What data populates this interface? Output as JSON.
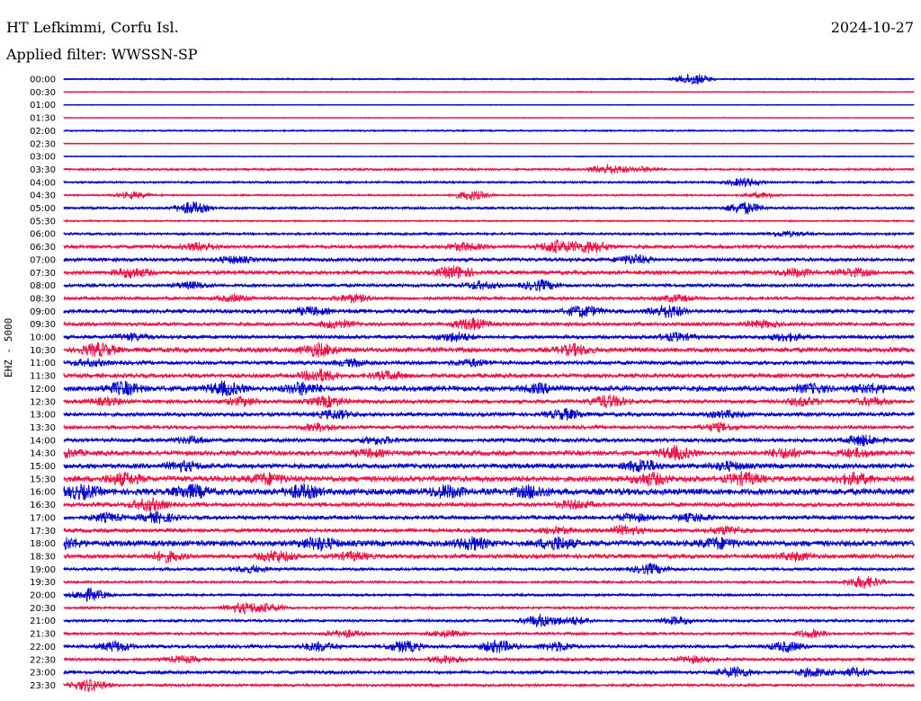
{
  "header": {
    "station": "HT Lefkimmi, Corfu Isl.",
    "date": "2024-10-27",
    "filter": "Applied filter: WWSSN-SP",
    "channel": "EHZ - 5000"
  },
  "colors": {
    "even_trace": "#0000cc",
    "odd_trace": "#ee1144",
    "text": "#000000"
  },
  "chart_data": {
    "type": "line",
    "title": "HT Lefkimmi, Corfu Isl.",
    "subtitle": "Applied filter: WWSSN-SP",
    "ylabel": "EHZ - 5000",
    "xlabel": "",
    "grid": false,
    "legend": "none",
    "tick_labels": [
      "00:00",
      "00:30",
      "01:00",
      "01:30",
      "02:00",
      "02:30",
      "03:00",
      "03:30",
      "04:00",
      "04:30",
      "05:00",
      "05:30",
      "06:00",
      "06:30",
      "07:00",
      "07:30",
      "08:00",
      "08:30",
      "09:00",
      "09:30",
      "10:00",
      "10:30",
      "11:00",
      "11:30",
      "12:00",
      "12:30",
      "13:00",
      "13:30",
      "14:00",
      "14:30",
      "15:00",
      "15:30",
      "16:00",
      "16:30",
      "17:00",
      "17:30",
      "18:00",
      "18:30",
      "19:00",
      "19:30",
      "20:00",
      "20:30",
      "21:00",
      "21:30",
      "22:00",
      "22:30",
      "23:00",
      "23:30"
    ],
    "activity_level": [
      0.15,
      0.05,
      0.02,
      0.02,
      0.15,
      0.05,
      0.05,
      0.25,
      0.25,
      0.2,
      0.3,
      0.15,
      0.3,
      0.5,
      0.5,
      0.55,
      0.45,
      0.45,
      0.55,
      0.5,
      0.5,
      0.7,
      0.55,
      0.6,
      0.8,
      0.55,
      0.55,
      0.5,
      0.55,
      0.7,
      0.7,
      0.85,
      0.95,
      0.6,
      0.55,
      0.55,
      0.85,
      0.6,
      0.4,
      0.3,
      0.3,
      0.3,
      0.35,
      0.35,
      0.45,
      0.4,
      0.45,
      0.35
    ],
    "bursts": [
      [
        [
          0.74,
          1.0
        ]
      ],
      [],
      [],
      [],
      [],
      [],
      [],
      [
        [
          0.64,
          0.8
        ],
        [
          0.68,
          0.4
        ]
      ],
      [
        [
          0.8,
          0.7
        ]
      ],
      [
        [
          0.08,
          0.5
        ],
        [
          0.48,
          0.8
        ],
        [
          0.82,
          0.4
        ]
      ],
      [
        [
          0.15,
          1.0
        ],
        [
          0.8,
          1.0
        ]
      ],
      [],
      [
        [
          0.85,
          0.4
        ]
      ],
      [
        [
          0.16,
          0.6
        ],
        [
          0.47,
          0.6
        ],
        [
          0.58,
          1.0
        ],
        [
          0.62,
          1.0
        ]
      ],
      [
        [
          0.2,
          0.5
        ],
        [
          0.67,
          0.7
        ]
      ],
      [
        [
          0.08,
          0.8
        ],
        [
          0.46,
          1.0
        ],
        [
          0.86,
          0.6
        ],
        [
          0.93,
          0.6
        ]
      ],
      [
        [
          0.15,
          0.5
        ],
        [
          0.49,
          0.6
        ],
        [
          0.56,
          0.8
        ]
      ],
      [
        [
          0.2,
          0.5
        ],
        [
          0.34,
          0.6
        ],
        [
          0.72,
          0.5
        ]
      ],
      [
        [
          0.29,
          0.6
        ],
        [
          0.61,
          0.9
        ],
        [
          0.71,
          1.0
        ]
      ],
      [
        [
          0.32,
          0.6
        ],
        [
          0.48,
          0.9
        ],
        [
          0.82,
          0.5
        ]
      ],
      [
        [
          0.08,
          0.5
        ],
        [
          0.46,
          0.7
        ],
        [
          0.72,
          0.6
        ],
        [
          0.85,
          0.6
        ]
      ],
      [
        [
          0.04,
          1.0
        ],
        [
          0.3,
          1.0
        ],
        [
          0.6,
          0.8
        ]
      ],
      [
        [
          0.03,
          0.5
        ],
        [
          0.34,
          0.5
        ],
        [
          0.48,
          0.5
        ]
      ],
      [
        [
          0.3,
          1.0
        ],
        [
          0.38,
          0.6
        ]
      ],
      [
        [
          0.07,
          1.0
        ],
        [
          0.19,
          1.0
        ],
        [
          0.28,
          0.9
        ],
        [
          0.56,
          0.6
        ],
        [
          0.88,
          0.6
        ],
        [
          0.95,
          0.6
        ]
      ],
      [
        [
          0.05,
          0.5
        ],
        [
          0.21,
          0.6
        ],
        [
          0.31,
          0.8
        ],
        [
          0.64,
          1.0
        ],
        [
          0.87,
          0.6
        ],
        [
          0.95,
          0.6
        ]
      ],
      [
        [
          0.32,
          0.7
        ],
        [
          0.59,
          0.8
        ],
        [
          0.78,
          0.5
        ]
      ],
      [
        [
          0.3,
          0.6
        ],
        [
          0.77,
          0.6
        ]
      ],
      [
        [
          0.15,
          0.5
        ],
        [
          0.37,
          0.5
        ],
        [
          0.94,
          0.8
        ]
      ],
      [
        [
          0.0,
          0.6
        ],
        [
          0.36,
          0.5
        ],
        [
          0.72,
          1.0
        ],
        [
          0.85,
          0.7
        ],
        [
          0.93,
          0.6
        ]
      ],
      [
        [
          0.14,
          0.7
        ],
        [
          0.68,
          1.0
        ],
        [
          0.78,
          0.6
        ]
      ],
      [
        [
          0.07,
          0.9
        ],
        [
          0.24,
          0.8
        ],
        [
          0.69,
          0.9
        ],
        [
          0.8,
          0.9
        ],
        [
          0.93,
          0.8
        ]
      ],
      [
        [
          0.02,
          1.0
        ],
        [
          0.15,
          1.0
        ],
        [
          0.28,
          1.0
        ],
        [
          0.45,
          0.9
        ],
        [
          0.55,
          0.9
        ]
      ],
      [
        [
          0.1,
          1.0
        ],
        [
          0.6,
          0.6
        ]
      ],
      [
        [
          0.05,
          0.6
        ],
        [
          0.11,
          0.8
        ],
        [
          0.67,
          0.6
        ],
        [
          0.74,
          0.6
        ]
      ],
      [
        [
          0.58,
          0.5
        ],
        [
          0.66,
          0.7
        ],
        [
          0.78,
          0.6
        ]
      ],
      [
        [
          0.0,
          0.8
        ],
        [
          0.3,
          1.0
        ],
        [
          0.48,
          0.9
        ],
        [
          0.58,
          1.0
        ],
        [
          0.77,
          0.8
        ]
      ],
      [
        [
          0.12,
          0.8
        ],
        [
          0.25,
          0.9
        ],
        [
          0.34,
          0.6
        ],
        [
          0.86,
          0.6
        ]
      ],
      [
        [
          0.22,
          0.5
        ],
        [
          0.69,
          0.8
        ]
      ],
      [
        [
          0.94,
          1.0
        ]
      ],
      [
        [
          0.03,
          1.0
        ]
      ],
      [
        [
          0.21,
          0.8
        ],
        [
          0.24,
          0.6
        ]
      ],
      [
        [
          0.56,
          1.0
        ],
        [
          0.6,
          0.6
        ],
        [
          0.72,
          0.6
        ]
      ],
      [
        [
          0.33,
          0.6
        ],
        [
          0.45,
          0.5
        ],
        [
          0.88,
          0.6
        ]
      ],
      [
        [
          0.06,
          0.8
        ],
        [
          0.3,
          0.7
        ],
        [
          0.4,
          0.9
        ],
        [
          0.51,
          1.0
        ],
        [
          0.58,
          0.7
        ],
        [
          0.85,
          0.8
        ]
      ],
      [
        [
          0.14,
          0.5
        ],
        [
          0.45,
          0.6
        ],
        [
          0.74,
          0.5
        ]
      ],
      [
        [
          0.79,
          0.8
        ],
        [
          0.88,
          0.7
        ],
        [
          0.93,
          0.6
        ]
      ],
      [
        [
          0.03,
          1.0
        ]
      ]
    ]
  }
}
